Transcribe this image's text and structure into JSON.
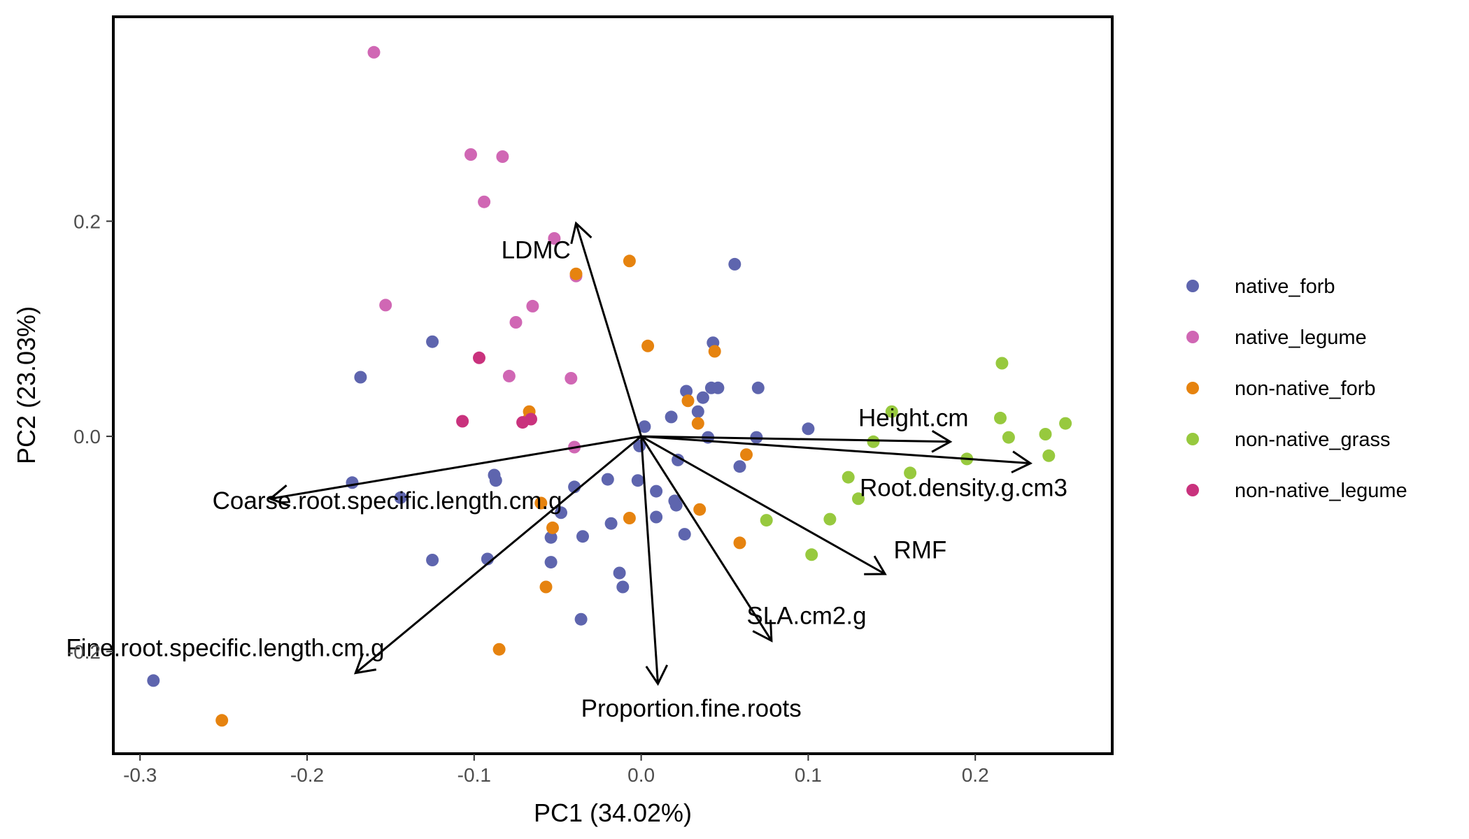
{
  "chart_data": {
    "type": "scatter",
    "subtype": "pca-biplot",
    "title": "",
    "xlabel": "PC1 (34.02%)",
    "ylabel": "PC2 (23.03%)",
    "xlim": [
      -0.316,
      0.282
    ],
    "ylim": [
      -0.295,
      0.39
    ],
    "xticks": [
      {
        "value": -0.3,
        "label": "-0.3"
      },
      {
        "value": -0.2,
        "label": "-0.2"
      },
      {
        "value": -0.1,
        "label": "-0.1"
      },
      {
        "value": 0.0,
        "label": "0.0"
      },
      {
        "value": 0.1,
        "label": "0.1"
      },
      {
        "value": 0.2,
        "label": "0.2"
      }
    ],
    "yticks": [
      {
        "value": -0.2,
        "label": "-0.2"
      },
      {
        "value": 0.0,
        "label": "0.0"
      },
      {
        "value": 0.2,
        "label": "0.2"
      }
    ],
    "grid": false,
    "legend_position": "right",
    "series": [
      {
        "name": "native_forb",
        "color": "#5E65AE",
        "points": [
          [
            -0.292,
            -0.227
          ],
          [
            -0.173,
            -0.043
          ],
          [
            -0.168,
            0.055
          ],
          [
            -0.144,
            -0.057
          ],
          [
            -0.125,
            0.088
          ],
          [
            -0.125,
            -0.115
          ],
          [
            -0.092,
            -0.114
          ],
          [
            -0.088,
            -0.036
          ],
          [
            -0.087,
            -0.041
          ],
          [
            -0.04,
            -0.047
          ],
          [
            -0.048,
            -0.071
          ],
          [
            -0.054,
            -0.117
          ],
          [
            -0.054,
            -0.094
          ],
          [
            -0.035,
            -0.093
          ],
          [
            -0.036,
            -0.17
          ],
          [
            -0.02,
            -0.04
          ],
          [
            -0.018,
            -0.081
          ],
          [
            -0.013,
            -0.127
          ],
          [
            -0.011,
            -0.14
          ],
          [
            -0.002,
            -0.041
          ],
          [
            -0.001,
            -0.009
          ],
          [
            0.002,
            0.009
          ],
          [
            0.009,
            -0.051
          ],
          [
            0.009,
            -0.075
          ],
          [
            0.018,
            0.018
          ],
          [
            0.02,
            -0.06
          ],
          [
            0.021,
            -0.064
          ],
          [
            0.022,
            -0.022
          ],
          [
            0.026,
            -0.091
          ],
          [
            0.027,
            0.042
          ],
          [
            0.034,
            0.023
          ],
          [
            0.037,
            0.036
          ],
          [
            0.04,
            -0.001
          ],
          [
            0.042,
            0.045
          ],
          [
            0.043,
            0.087
          ],
          [
            0.046,
            0.045
          ],
          [
            0.056,
            0.16
          ],
          [
            0.059,
            -0.028
          ],
          [
            0.069,
            -0.001
          ],
          [
            0.07,
            0.045
          ],
          [
            0.1,
            0.007
          ]
        ]
      },
      {
        "name": "native_legume",
        "color": "#D067B4",
        "points": [
          [
            -0.16,
            0.357
          ],
          [
            -0.102,
            0.262
          ],
          [
            -0.083,
            0.26
          ],
          [
            -0.094,
            0.218
          ],
          [
            -0.052,
            0.184
          ],
          [
            -0.039,
            0.149
          ],
          [
            -0.153,
            0.122
          ],
          [
            -0.065,
            0.121
          ],
          [
            -0.075,
            0.106
          ],
          [
            -0.079,
            0.056
          ],
          [
            -0.042,
            0.054
          ],
          [
            -0.04,
            -0.01
          ]
        ]
      },
      {
        "name": "non-native_forb",
        "color": "#E6830F",
        "points": [
          [
            -0.251,
            -0.264
          ],
          [
            -0.085,
            -0.198
          ],
          [
            -0.067,
            0.023
          ],
          [
            -0.067,
            0.017
          ],
          [
            -0.06,
            -0.062
          ],
          [
            -0.057,
            -0.14
          ],
          [
            -0.053,
            -0.085
          ],
          [
            -0.039,
            0.151
          ],
          [
            -0.007,
            0.163
          ],
          [
            -0.007,
            -0.076
          ],
          [
            0.004,
            0.084
          ],
          [
            0.028,
            0.033
          ],
          [
            0.034,
            0.012
          ],
          [
            0.035,
            -0.068
          ],
          [
            0.044,
            0.079
          ],
          [
            0.059,
            -0.099
          ],
          [
            0.063,
            -0.017
          ]
        ]
      },
      {
        "name": "non-native_grass",
        "color": "#97C93E",
        "points": [
          [
            0.15,
            0.023
          ],
          [
            0.139,
            -0.005
          ],
          [
            0.124,
            -0.038
          ],
          [
            0.13,
            -0.058
          ],
          [
            0.113,
            -0.077
          ],
          [
            0.075,
            -0.078
          ],
          [
            0.102,
            -0.11
          ],
          [
            0.161,
            -0.034
          ],
          [
            0.195,
            -0.021
          ],
          [
            0.215,
            0.017
          ],
          [
            0.216,
            0.068
          ],
          [
            0.22,
            -0.001
          ],
          [
            0.242,
            0.002
          ],
          [
            0.244,
            -0.018
          ],
          [
            0.254,
            0.012
          ]
        ]
      },
      {
        "name": "non-native_legume",
        "color": "#C9327D",
        "points": [
          [
            -0.097,
            0.073
          ],
          [
            -0.107,
            0.014
          ],
          [
            -0.071,
            0.013
          ],
          [
            -0.066,
            0.016
          ]
        ]
      }
    ],
    "loadings": [
      {
        "name": "LDMC",
        "x": -0.039,
        "y": 0.198,
        "label_x": -0.063,
        "label_y": 0.173
      },
      {
        "name": "Height.cm",
        "x": 0.185,
        "y": -0.005,
        "label_x": 0.163,
        "label_y": 0.017
      },
      {
        "name": "Root.density.g.cm3",
        "x": 0.233,
        "y": -0.025,
        "label_x": 0.193,
        "label_y": -0.048
      },
      {
        "name": "RMF",
        "x": 0.146,
        "y": -0.128,
        "label_x": 0.167,
        "label_y": -0.106
      },
      {
        "name": "SLA.cm2.g",
        "x": 0.078,
        "y": -0.19,
        "label_x": 0.099,
        "label_y": -0.167
      },
      {
        "name": "Proportion.fine.roots",
        "x": 0.01,
        "y": -0.23,
        "label_x": 0.03,
        "label_y": -0.253
      },
      {
        "name": "Fine.root.specific.length.cm.g",
        "x": -0.171,
        "y": -0.22,
        "label_x": -0.249,
        "label_y": -0.197
      },
      {
        "name": "Coarse.root.specific.length.cm.g",
        "x": -0.222,
        "y": -0.058,
        "label_x": -0.152,
        "label_y": -0.06
      }
    ]
  }
}
